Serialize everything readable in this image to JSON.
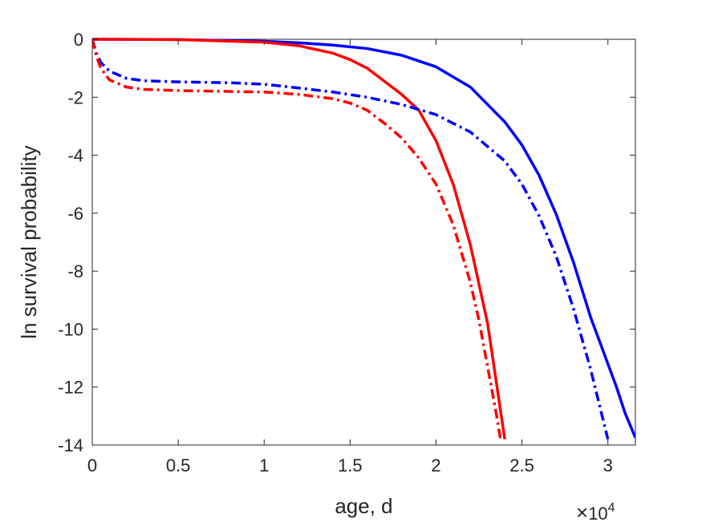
{
  "chart_data": {
    "type": "line",
    "xlabel": "age, d",
    "ylabel": "ln survival probability",
    "x_multiplier": {
      "base": "10",
      "exponent": "4",
      "symbol": "×"
    },
    "xlim": [
      0,
      31600
    ],
    "ylim": [
      -14,
      0
    ],
    "x_ticks": [
      {
        "value": 0,
        "label": "0"
      },
      {
        "value": 5000,
        "label": "0.5"
      },
      {
        "value": 10000,
        "label": "1"
      },
      {
        "value": 15000,
        "label": "1.5"
      },
      {
        "value": 20000,
        "label": "2"
      },
      {
        "value": 25000,
        "label": "2.5"
      },
      {
        "value": 30000,
        "label": "3"
      }
    ],
    "y_ticks": [
      {
        "value": 0,
        "label": "0"
      },
      {
        "value": -2,
        "label": "-2"
      },
      {
        "value": -4,
        "label": "-4"
      },
      {
        "value": -6,
        "label": "-6"
      },
      {
        "value": -8,
        "label": "-8"
      },
      {
        "value": -10,
        "label": "-10"
      },
      {
        "value": -12,
        "label": "-12"
      },
      {
        "value": -14,
        "label": "-14"
      }
    ],
    "grid": false,
    "legend": "none",
    "box": true,
    "series": [
      {
        "color": "#0000ff",
        "style": "solid",
        "points": [
          [
            0,
            0
          ],
          [
            5000,
            -0.01
          ],
          [
            10000,
            -0.07
          ],
          [
            12000,
            -0.12
          ],
          [
            14000,
            -0.2
          ],
          [
            16000,
            -0.32
          ],
          [
            18000,
            -0.55
          ],
          [
            20000,
            -0.95
          ],
          [
            22000,
            -1.65
          ],
          [
            24000,
            -2.85
          ],
          [
            25000,
            -3.65
          ],
          [
            26000,
            -4.7
          ],
          [
            27000,
            -6.05
          ],
          [
            28000,
            -7.7
          ],
          [
            29000,
            -9.6
          ],
          [
            30000,
            -11.2
          ],
          [
            30500,
            -12.0
          ],
          [
            31000,
            -12.9
          ],
          [
            31600,
            -13.75
          ]
        ]
      },
      {
        "color": "#ff0000",
        "style": "solid",
        "points": [
          [
            0,
            0
          ],
          [
            5000,
            -0.01
          ],
          [
            10000,
            -0.1
          ],
          [
            12000,
            -0.22
          ],
          [
            14000,
            -0.48
          ],
          [
            15000,
            -0.7
          ],
          [
            16000,
            -1.0
          ],
          [
            17000,
            -1.45
          ],
          [
            18000,
            -1.9
          ],
          [
            19000,
            -2.45
          ],
          [
            20000,
            -3.5
          ],
          [
            21000,
            -5.0
          ],
          [
            22000,
            -7.1
          ],
          [
            23000,
            -9.8
          ],
          [
            23500,
            -11.8
          ],
          [
            24000,
            -13.8
          ]
        ]
      },
      {
        "color": "#0000ff",
        "style": "dashdot",
        "points": [
          [
            0,
            0
          ],
          [
            250,
            -0.5
          ],
          [
            500,
            -0.8
          ],
          [
            1000,
            -1.1
          ],
          [
            2000,
            -1.35
          ],
          [
            3000,
            -1.43
          ],
          [
            5000,
            -1.47
          ],
          [
            8000,
            -1.5
          ],
          [
            10000,
            -1.55
          ],
          [
            12000,
            -1.68
          ],
          [
            14000,
            -1.82
          ],
          [
            16000,
            -2.0
          ],
          [
            18000,
            -2.25
          ],
          [
            20000,
            -2.6
          ],
          [
            22000,
            -3.2
          ],
          [
            24000,
            -4.2
          ],
          [
            25000,
            -5.0
          ],
          [
            26000,
            -6.1
          ],
          [
            27000,
            -7.5
          ],
          [
            28000,
            -9.3
          ],
          [
            29000,
            -11.4
          ],
          [
            29500,
            -12.6
          ],
          [
            30000,
            -13.8
          ]
        ]
      },
      {
        "color": "#ff0000",
        "style": "dashdot",
        "points": [
          [
            0,
            0
          ],
          [
            250,
            -0.6
          ],
          [
            500,
            -1.0
          ],
          [
            1000,
            -1.4
          ],
          [
            2000,
            -1.65
          ],
          [
            3000,
            -1.73
          ],
          [
            5000,
            -1.77
          ],
          [
            8000,
            -1.8
          ],
          [
            10000,
            -1.82
          ],
          [
            12000,
            -1.9
          ],
          [
            14000,
            -2.05
          ],
          [
            15000,
            -2.2
          ],
          [
            16000,
            -2.45
          ],
          [
            17000,
            -2.9
          ],
          [
            18000,
            -3.4
          ],
          [
            19000,
            -4.1
          ],
          [
            20000,
            -5.0
          ],
          [
            21000,
            -6.4
          ],
          [
            22000,
            -8.4
          ],
          [
            22500,
            -9.7
          ],
          [
            23000,
            -11.3
          ],
          [
            23500,
            -12.9
          ],
          [
            23750,
            -13.8
          ]
        ]
      }
    ]
  }
}
